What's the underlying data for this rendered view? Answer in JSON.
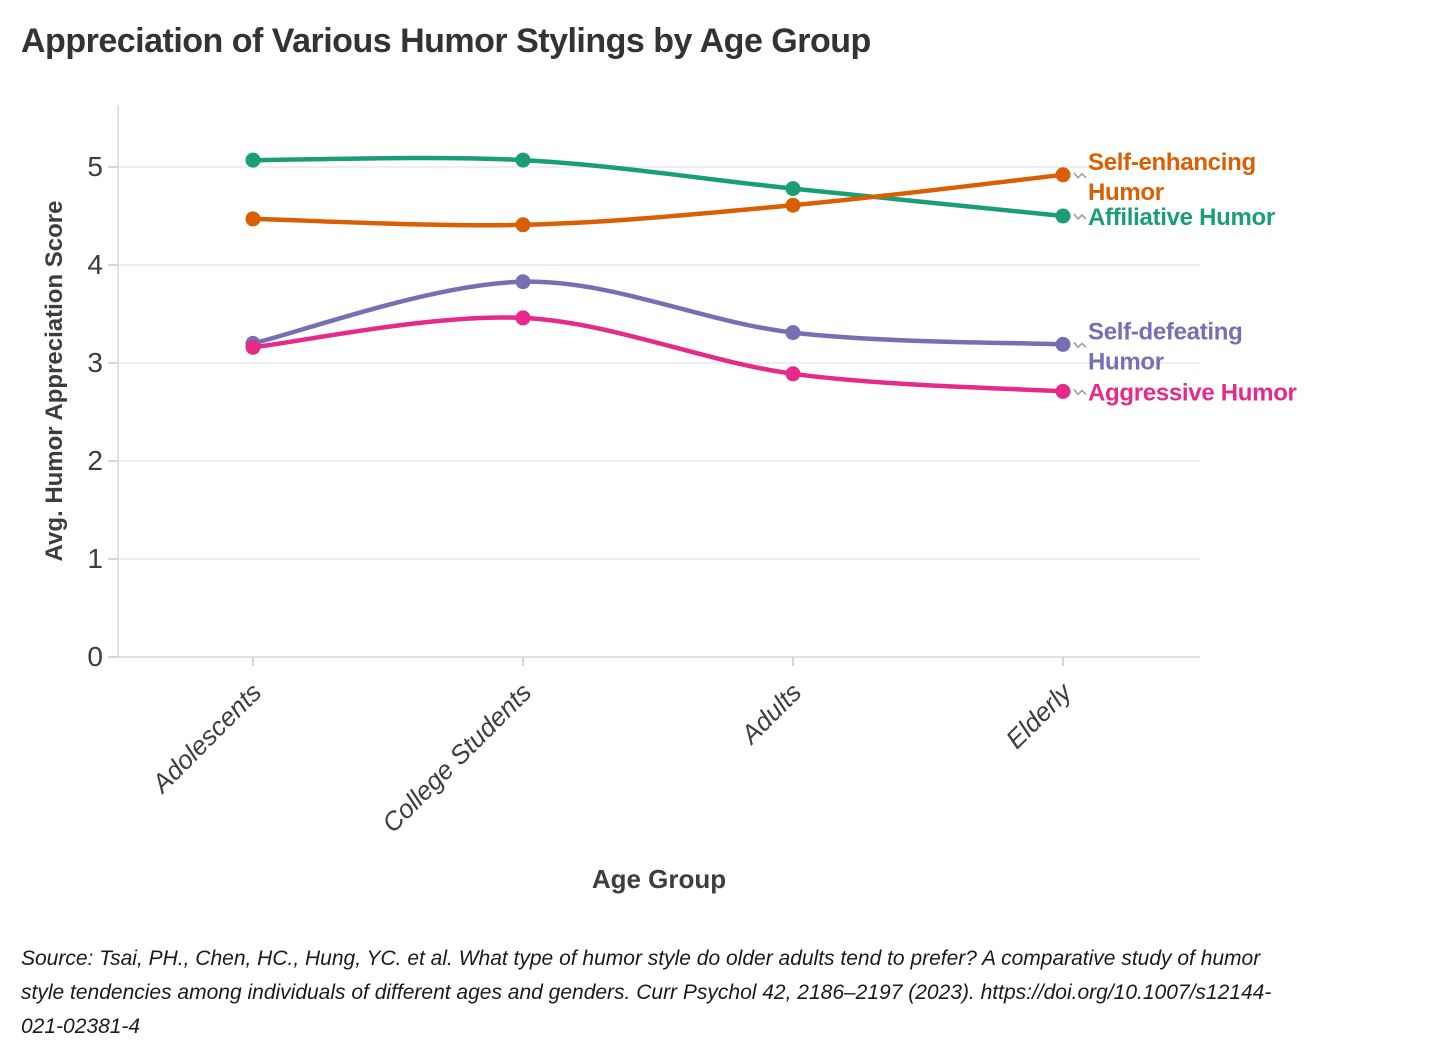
{
  "title": "Appreciation of Various Humor Stylings by Age Group",
  "chart_data": {
    "type": "line",
    "title": "Appreciation of Various Humor Stylings by Age Group",
    "xlabel": "Age Group",
    "ylabel": "Avg. Humor Appreciation Score",
    "x": [
      "Adolescents",
      "College Students",
      "Adults",
      "Elderly"
    ],
    "yticks": [
      0,
      1,
      2,
      3,
      4,
      5
    ],
    "ylim": [
      0,
      5.6
    ],
    "grid": true,
    "legend_position": "right-direct-labels",
    "series": [
      {
        "name": "Affiliative Humor",
        "label_lines": [
          "Affiliative Humor"
        ],
        "color": "#1b9e77",
        "values": [
          5.07,
          5.07,
          4.78,
          4.5
        ]
      },
      {
        "name": "Self-enhancing Humor",
        "label_lines": [
          "Self-enhancing",
          "Humor"
        ],
        "color": "#d95f02",
        "values": [
          4.47,
          4.41,
          4.61,
          4.92
        ]
      },
      {
        "name": "Self-defeating Humor",
        "label_lines": [
          "Self-defeating",
          "Humor"
        ],
        "color": "#7570b3",
        "values": [
          3.2,
          3.83,
          3.31,
          3.19
        ]
      },
      {
        "name": "Aggressive Humor",
        "label_lines": [
          "Aggressive Humor"
        ],
        "color": "#e7298a",
        "values": [
          3.16,
          3.46,
          2.89,
          2.71
        ]
      }
    ]
  },
  "source_lines": [
    "Source: Tsai, PH., Chen, HC., Hung, YC. et al. What type of humor style do older adults tend to prefer? A comparative study of humor",
    "style tendencies among individuals of different ages and genders. Curr Psychol 42, 2186–2197 (2023). https://doi.org/10.1007/s12144-",
    "021-02381-4"
  ],
  "style_colors": {
    "gridline": "#e8e8e8",
    "axis_line": "#d8d8d8",
    "tick_mark": "#c8c8c8",
    "connector": "#a0a0a0",
    "text": "#3d3d3d"
  }
}
